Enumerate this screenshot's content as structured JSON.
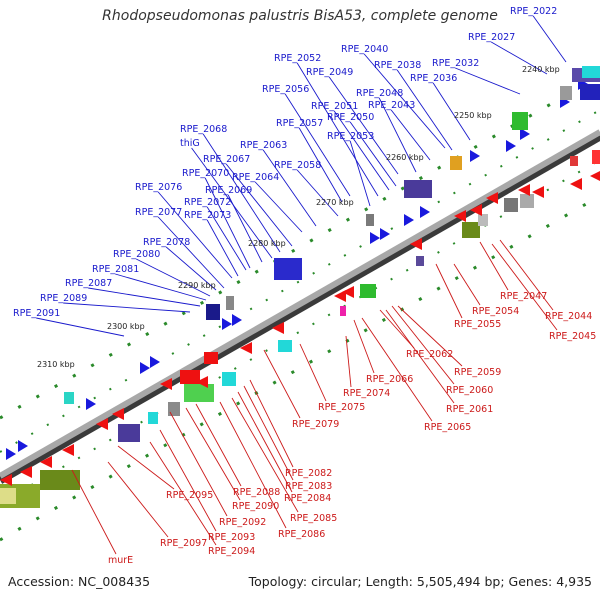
{
  "title": "Rhodopseudomonas palustris BisA53, complete genome",
  "footer": {
    "accession": "Accession: NC_008435",
    "summary": "Topology: circular; Length: 5,505,494 bp; Genes: 4,935"
  },
  "colors": {
    "forward_label": "#1a1acc",
    "reverse_label": "#cc1a1a",
    "backbone": "#8a8a8a"
  },
  "ticks": [
    "2240 kbp",
    "2250 kbp",
    "2260 kbp",
    "2270 kbp",
    "2280 kbp",
    "2290 kbp",
    "2300 kbp",
    "2310 kbp"
  ],
  "forward_genes": [
    "RPE_2022",
    "RPE_2027",
    "RPE_2032",
    "RPE_2036",
    "RPE_2038",
    "RPE_2040",
    "RPE_2043",
    "RPE_2048",
    "RPE_2049",
    "RPE_2050",
    "RPE_2051",
    "RPE_2052",
    "RPE_2053",
    "RPE_2056",
    "RPE_2057",
    "RPE_2058",
    "RPE_2063",
    "RPE_2064",
    "RPE_2067",
    "RPE_2068",
    "thiG",
    "RPE_2069",
    "RPE_2070",
    "RPE_2072",
    "RPE_2073",
    "RPE_2076",
    "RPE_2077",
    "RPE_2078",
    "RPE_2080",
    "RPE_2081",
    "RPE_2087",
    "RPE_2089",
    "RPE_2091"
  ],
  "reverse_genes": [
    "RPE_2044",
    "RPE_2045",
    "RPE_2047",
    "RPE_2054",
    "RPE_2055",
    "RPE_2059",
    "RPE_2060",
    "RPE_2061",
    "RPE_2062",
    "RPE_2065",
    "RPE_2066",
    "RPE_2074",
    "RPE_2075",
    "RPE_2079",
    "RPE_2082",
    "RPE_2083",
    "RPE_2084",
    "RPE_2085",
    "RPE_2086",
    "RPE_2088",
    "RPE_2090",
    "RPE_2092",
    "RPE_2093",
    "RPE_2094",
    "RPE_2095",
    "RPE_2097",
    "murE"
  ]
}
